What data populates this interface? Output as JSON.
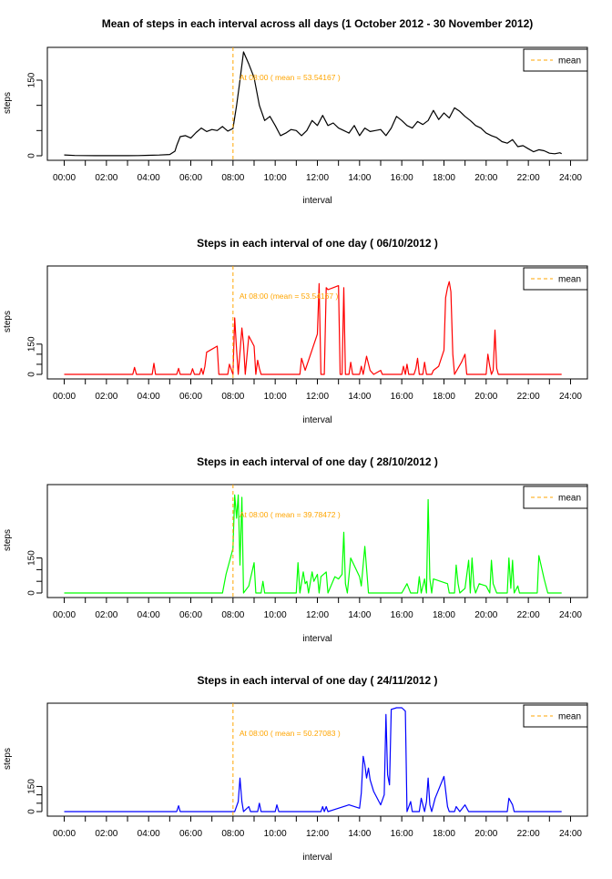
{
  "vline_color": "#FFA500",
  "chart_data": [
    {
      "type": "line",
      "title": "Mean of steps in each interval across all days (1 October 2012 - 30 November 2012)",
      "xlabel": "interval",
      "ylabel": "steps",
      "color": "#000000",
      "xlim": [
        -0.8,
        24.8
      ],
      "ylim": [
        0,
        206
      ],
      "x_ticks": [
        "00:00",
        "02:00",
        "04:00",
        "06:00",
        "08:00",
        "10:00",
        "12:00",
        "14:00",
        "16:00",
        "18:00",
        "20:00",
        "22:00",
        "24:00"
      ],
      "y_ticks": [
        0,
        150
      ],
      "vline_x": "08:00",
      "annotation": "At  08:00 ( mean =  53.54167 )",
      "legend": {
        "label": "mean",
        "position": "top-right"
      },
      "points": [
        [
          0,
          1.7
        ],
        [
          0.5,
          0.6
        ],
        [
          1,
          0.3
        ],
        [
          1.5,
          0.2
        ],
        [
          2,
          0.1
        ],
        [
          2.5,
          0.2
        ],
        [
          3,
          0.1
        ],
        [
          3.5,
          0.3
        ],
        [
          4,
          0.9
        ],
        [
          4.5,
          1.5
        ],
        [
          5,
          2.5
        ],
        [
          5.25,
          9
        ],
        [
          5.33,
          20
        ],
        [
          5.5,
          38
        ],
        [
          5.75,
          40
        ],
        [
          6,
          35
        ],
        [
          6.25,
          46
        ],
        [
          6.5,
          55
        ],
        [
          6.75,
          48
        ],
        [
          7,
          52
        ],
        [
          7.25,
          50
        ],
        [
          7.5,
          58
        ],
        [
          7.75,
          49
        ],
        [
          8,
          54
        ],
        [
          8.17,
          100
        ],
        [
          8.3,
          140
        ],
        [
          8.5,
          206
        ],
        [
          8.75,
          182
        ],
        [
          9,
          155
        ],
        [
          9.25,
          100
        ],
        [
          9.5,
          70
        ],
        [
          9.75,
          78
        ],
        [
          10,
          60
        ],
        [
          10.25,
          40
        ],
        [
          10.5,
          45
        ],
        [
          10.75,
          52
        ],
        [
          11,
          50
        ],
        [
          11.25,
          40
        ],
        [
          11.5,
          50
        ],
        [
          11.75,
          70
        ],
        [
          12,
          60
        ],
        [
          12.25,
          80
        ],
        [
          12.5,
          60
        ],
        [
          12.75,
          65
        ],
        [
          13,
          55
        ],
        [
          13.25,
          50
        ],
        [
          13.5,
          45
        ],
        [
          13.75,
          60
        ],
        [
          14,
          40
        ],
        [
          14.25,
          55
        ],
        [
          14.5,
          48
        ],
        [
          14.75,
          50
        ],
        [
          15,
          52
        ],
        [
          15.25,
          40
        ],
        [
          15.5,
          55
        ],
        [
          15.75,
          78
        ],
        [
          16,
          70
        ],
        [
          16.25,
          60
        ],
        [
          16.5,
          55
        ],
        [
          16.75,
          68
        ],
        [
          17,
          62
        ],
        [
          17.25,
          70
        ],
        [
          17.5,
          90
        ],
        [
          17.75,
          72
        ],
        [
          18,
          85
        ],
        [
          18.25,
          75
        ],
        [
          18.5,
          95
        ],
        [
          18.75,
          88
        ],
        [
          19,
          78
        ],
        [
          19.25,
          70
        ],
        [
          19.5,
          60
        ],
        [
          19.75,
          55
        ],
        [
          20,
          45
        ],
        [
          20.25,
          40
        ],
        [
          20.5,
          36
        ],
        [
          20.75,
          28
        ],
        [
          21,
          25
        ],
        [
          21.25,
          32
        ],
        [
          21.5,
          18
        ],
        [
          21.75,
          20
        ],
        [
          22,
          14
        ],
        [
          22.25,
          8
        ],
        [
          22.5,
          12
        ],
        [
          22.75,
          10
        ],
        [
          23,
          5
        ],
        [
          23.25,
          4
        ],
        [
          23.5,
          6
        ],
        [
          23.58,
          4
        ]
      ]
    },
    {
      "type": "line",
      "title": "Steps in each interval of one day  ( 06/10/2012 )",
      "xlabel": "interval",
      "ylabel": "steps",
      "color": "#FF0000",
      "xlim": [
        -0.8,
        24.8
      ],
      "ylim": [
        0,
        515
      ],
      "x_ticks": [
        "00:00",
        "02:00",
        "04:00",
        "06:00",
        "08:00",
        "10:00",
        "12:00",
        "14:00",
        "16:00",
        "18:00",
        "20:00",
        "22:00",
        "24:00"
      ],
      "y_ticks": [
        0,
        150
      ],
      "vline_x": "08:00",
      "annotation": "At  08:00 (mean =  53.54167 )",
      "legend": {
        "label": "mean",
        "position": "top-right"
      },
      "points": [
        [
          0,
          0
        ],
        [
          3.25,
          0
        ],
        [
          3.33,
          35
        ],
        [
          3.42,
          0
        ],
        [
          4.17,
          0
        ],
        [
          4.25,
          55
        ],
        [
          4.33,
          0
        ],
        [
          5.33,
          0
        ],
        [
          5.42,
          30
        ],
        [
          5.5,
          0
        ],
        [
          6,
          0
        ],
        [
          6.08,
          28
        ],
        [
          6.17,
          0
        ],
        [
          6.42,
          0
        ],
        [
          6.5,
          30
        ],
        [
          6.58,
          0
        ],
        [
          6.67,
          40
        ],
        [
          6.75,
          110
        ],
        [
          7.25,
          140
        ],
        [
          7.33,
          0
        ],
        [
          7.75,
          0
        ],
        [
          7.83,
          50
        ],
        [
          8,
          0
        ],
        [
          8.08,
          280
        ],
        [
          8.17,
          120
        ],
        [
          8.25,
          0
        ],
        [
          8.42,
          230
        ],
        [
          8.5,
          150
        ],
        [
          8.58,
          0
        ],
        [
          8.75,
          190
        ],
        [
          9,
          140
        ],
        [
          9.08,
          0
        ],
        [
          9.17,
          70
        ],
        [
          9.25,
          30
        ],
        [
          9.33,
          0
        ],
        [
          10,
          0
        ],
        [
          11.17,
          0
        ],
        [
          11.25,
          80
        ],
        [
          11.42,
          20
        ],
        [
          12,
          200
        ],
        [
          12.08,
          450
        ],
        [
          12.17,
          0
        ],
        [
          12.33,
          0
        ],
        [
          12.42,
          430
        ],
        [
          12.5,
          420
        ],
        [
          12.75,
          430
        ],
        [
          13,
          440
        ],
        [
          13.08,
          0
        ],
        [
          13.17,
          0
        ],
        [
          13.25,
          430
        ],
        [
          13.33,
          0
        ],
        [
          13.5,
          0
        ],
        [
          13.58,
          60
        ],
        [
          13.67,
          0
        ],
        [
          14,
          0
        ],
        [
          14.08,
          40
        ],
        [
          14.17,
          0
        ],
        [
          14.33,
          90
        ],
        [
          14.5,
          20
        ],
        [
          14.67,
          0
        ],
        [
          15,
          20
        ],
        [
          15.08,
          0
        ],
        [
          16,
          0
        ],
        [
          16.08,
          40
        ],
        [
          16.17,
          0
        ],
        [
          16.25,
          50
        ],
        [
          16.33,
          0
        ],
        [
          16.58,
          0
        ],
        [
          16.67,
          30
        ],
        [
          16.75,
          80
        ],
        [
          16.83,
          0
        ],
        [
          17,
          0
        ],
        [
          17.08,
          60
        ],
        [
          17.17,
          0
        ],
        [
          17.42,
          0
        ],
        [
          17.5,
          20
        ],
        [
          17.75,
          40
        ],
        [
          18,
          120
        ],
        [
          18.08,
          380
        ],
        [
          18.17,
          430
        ],
        [
          18.25,
          460
        ],
        [
          18.33,
          410
        ],
        [
          18.42,
          100
        ],
        [
          18.5,
          0
        ],
        [
          18.83,
          60
        ],
        [
          19,
          100
        ],
        [
          19.08,
          0
        ],
        [
          20,
          0
        ],
        [
          20.08,
          100
        ],
        [
          20.17,
          40
        ],
        [
          20.25,
          0
        ],
        [
          20.33,
          20
        ],
        [
          20.42,
          220
        ],
        [
          20.5,
          30
        ],
        [
          20.58,
          0
        ],
        [
          23.58,
          0
        ]
      ]
    },
    {
      "type": "line",
      "title": "Steps in each interval of one day  ( 28/10/2012 )",
      "xlabel": "interval",
      "ylabel": "steps",
      "color": "#00FF00",
      "xlim": [
        -0.8,
        24.8
      ],
      "ylim": [
        0,
        445
      ],
      "x_ticks": [
        "00:00",
        "02:00",
        "04:00",
        "06:00",
        "08:00",
        "10:00",
        "12:00",
        "14:00",
        "16:00",
        "18:00",
        "20:00",
        "22:00",
        "24:00"
      ],
      "y_ticks": [
        0,
        150
      ],
      "vline_x": "08:00",
      "annotation": "At  08:00 ( mean =   39.78472 )",
      "legend": {
        "label": "mean",
        "position": "top-right"
      },
      "points": [
        [
          0,
          0
        ],
        [
          7.5,
          0
        ],
        [
          7.67,
          80
        ],
        [
          8,
          190
        ],
        [
          8.08,
          420
        ],
        [
          8.17,
          320
        ],
        [
          8.25,
          420
        ],
        [
          8.33,
          120
        ],
        [
          8.42,
          410
        ],
        [
          8.5,
          0
        ],
        [
          8.75,
          30
        ],
        [
          9,
          130
        ],
        [
          9.08,
          0
        ],
        [
          9.33,
          0
        ],
        [
          9.42,
          50
        ],
        [
          9.5,
          0
        ],
        [
          11,
          0
        ],
        [
          11.08,
          130
        ],
        [
          11.17,
          0
        ],
        [
          11.33,
          90
        ],
        [
          11.42,
          40
        ],
        [
          11.5,
          50
        ],
        [
          11.58,
          0
        ],
        [
          11.75,
          90
        ],
        [
          11.83,
          50
        ],
        [
          12,
          80
        ],
        [
          12.08,
          0
        ],
        [
          12.17,
          70
        ],
        [
          12.42,
          90
        ],
        [
          12.5,
          0
        ],
        [
          12.83,
          70
        ],
        [
          13,
          60
        ],
        [
          13.17,
          80
        ],
        [
          13.25,
          260
        ],
        [
          13.33,
          40
        ],
        [
          13.42,
          0
        ],
        [
          13.58,
          150
        ],
        [
          14,
          70
        ],
        [
          14.08,
          30
        ],
        [
          14.25,
          200
        ],
        [
          14.42,
          0
        ],
        [
          16,
          0
        ],
        [
          16.25,
          40
        ],
        [
          16.42,
          0
        ],
        [
          16.75,
          0
        ],
        [
          16.83,
          70
        ],
        [
          16.92,
          0
        ],
        [
          17.08,
          60
        ],
        [
          17.17,
          0
        ],
        [
          17.25,
          400
        ],
        [
          17.33,
          60
        ],
        [
          17.42,
          0
        ],
        [
          17.5,
          60
        ],
        [
          18.17,
          40
        ],
        [
          18.25,
          0
        ],
        [
          18.5,
          0
        ],
        [
          18.58,
          120
        ],
        [
          18.67,
          40
        ],
        [
          18.75,
          0
        ],
        [
          19,
          20
        ],
        [
          19.17,
          140
        ],
        [
          19.25,
          0
        ],
        [
          19.33,
          150
        ],
        [
          19.42,
          30
        ],
        [
          19.5,
          0
        ],
        [
          19.67,
          40
        ],
        [
          20,
          30
        ],
        [
          20.17,
          0
        ],
        [
          20.25,
          140
        ],
        [
          20.33,
          40
        ],
        [
          20.5,
          0
        ],
        [
          21,
          0
        ],
        [
          21.08,
          150
        ],
        [
          21.17,
          20
        ],
        [
          21.25,
          140
        ],
        [
          21.33,
          0
        ],
        [
          21.5,
          30
        ],
        [
          21.58,
          0
        ],
        [
          22.42,
          0
        ],
        [
          22.5,
          160
        ],
        [
          22.75,
          60
        ],
        [
          22.92,
          0
        ],
        [
          23.58,
          0
        ]
      ]
    },
    {
      "type": "line",
      "title": "Steps in each interval of one day  ( 24/11/2012 )",
      "xlabel": "interval",
      "ylabel": "steps",
      "color": "#0000FF",
      "xlim": [
        -0.8,
        24.8
      ],
      "ylim": [
        0,
        620
      ],
      "x_ticks": [
        "00:00",
        "02:00",
        "04:00",
        "06:00",
        "08:00",
        "10:00",
        "12:00",
        "14:00",
        "16:00",
        "18:00",
        "20:00",
        "22:00",
        "24:00"
      ],
      "y_ticks": [
        0,
        150
      ],
      "vline_x": "08:00",
      "annotation": "At  08:00 ( mean =  50.27083 )",
      "legend": {
        "label": "mean",
        "position": "top-right"
      },
      "points": [
        [
          0,
          0
        ],
        [
          5.33,
          0
        ],
        [
          5.42,
          35
        ],
        [
          5.5,
          0
        ],
        [
          8.08,
          0
        ],
        [
          8.25,
          60
        ],
        [
          8.33,
          200
        ],
        [
          8.42,
          60
        ],
        [
          8.5,
          0
        ],
        [
          8.75,
          30
        ],
        [
          8.83,
          0
        ],
        [
          9.17,
          0
        ],
        [
          9.25,
          50
        ],
        [
          9.33,
          0
        ],
        [
          10,
          0
        ],
        [
          10.08,
          40
        ],
        [
          10.17,
          0
        ],
        [
          12.17,
          0
        ],
        [
          12.25,
          30
        ],
        [
          12.33,
          0
        ],
        [
          12.42,
          30
        ],
        [
          12.5,
          0
        ],
        [
          13.5,
          40
        ],
        [
          14,
          20
        ],
        [
          14.08,
          110
        ],
        [
          14.17,
          330
        ],
        [
          14.25,
          280
        ],
        [
          14.33,
          200
        ],
        [
          14.42,
          260
        ],
        [
          14.5,
          190
        ],
        [
          14.67,
          120
        ],
        [
          15,
          40
        ],
        [
          15.17,
          100
        ],
        [
          15.25,
          580
        ],
        [
          15.33,
          220
        ],
        [
          15.42,
          160
        ],
        [
          15.5,
          610
        ],
        [
          15.75,
          620
        ],
        [
          16,
          620
        ],
        [
          16.17,
          600
        ],
        [
          16.25,
          0
        ],
        [
          16.42,
          60
        ],
        [
          16.5,
          0
        ],
        [
          16.83,
          0
        ],
        [
          16.92,
          80
        ],
        [
          17.08,
          0
        ],
        [
          17.17,
          60
        ],
        [
          17.25,
          200
        ],
        [
          17.33,
          40
        ],
        [
          17.42,
          0
        ],
        [
          17.58,
          80
        ],
        [
          18,
          210
        ],
        [
          18.17,
          30
        ],
        [
          18.25,
          0
        ],
        [
          18.5,
          0
        ],
        [
          18.58,
          30
        ],
        [
          18.75,
          0
        ],
        [
          19,
          40
        ],
        [
          19.17,
          0
        ],
        [
          21,
          0
        ],
        [
          21.08,
          80
        ],
        [
          21.25,
          40
        ],
        [
          21.33,
          0
        ],
        [
          23.58,
          0
        ]
      ]
    }
  ]
}
